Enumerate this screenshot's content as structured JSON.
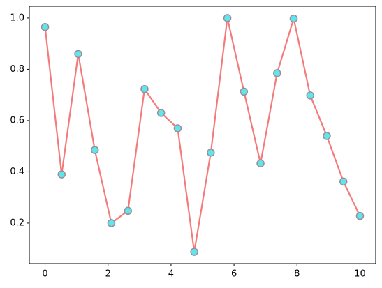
{
  "chart_data": {
    "type": "line",
    "x": [
      0,
      0.526,
      1.053,
      1.579,
      2.105,
      2.632,
      3.158,
      3.684,
      4.211,
      4.737,
      5.263,
      5.789,
      6.316,
      6.842,
      7.368,
      7.895,
      8.421,
      8.947,
      9.474,
      10
    ],
    "series": [
      {
        "color": "#f37b7b",
        "marker_color": "#5ce6ee",
        "marker_edge": "#a08a95",
        "values": [
          0.965,
          0.39,
          0.86,
          0.485,
          0.2,
          0.248,
          0.723,
          0.63,
          0.57,
          0.088,
          0.475,
          1.0,
          0.713,
          0.433,
          0.785,
          0.998,
          0.698,
          0.54,
          0.362,
          0.228
        ]
      }
    ],
    "xlim": [
      -0.5,
      10.5
    ],
    "ylim": [
      0.042,
      1.046
    ],
    "xticks": [
      0,
      2,
      4,
      6,
      8,
      10
    ],
    "yticks": [
      0.2,
      0.4,
      0.6,
      0.8,
      {
        "value": 1,
        "label": "1.0"
      }
    ]
  }
}
